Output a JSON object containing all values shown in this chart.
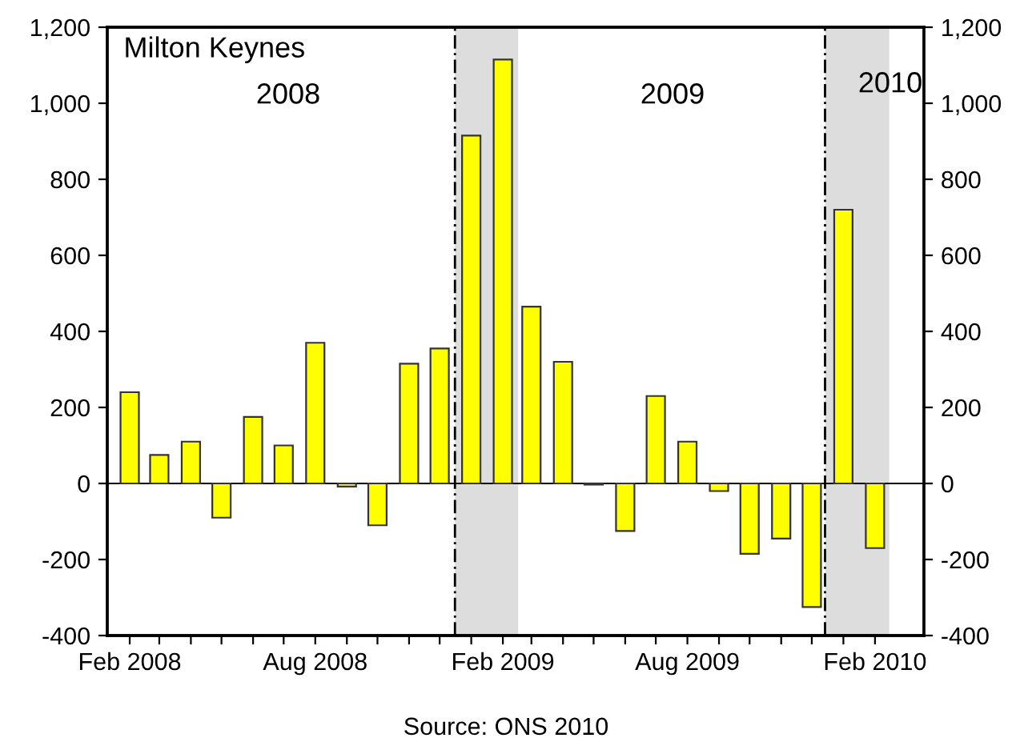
{
  "chart_data": {
    "type": "bar",
    "title": "Milton Keynes",
    "x": [
      "2008-02",
      "2008-03",
      "2008-04",
      "2008-05",
      "2008-06",
      "2008-07",
      "2008-08",
      "2008-09",
      "2008-10",
      "2008-11",
      "2008-12",
      "2009-01",
      "2009-02",
      "2009-03",
      "2009-04",
      "2009-05",
      "2009-06",
      "2009-07",
      "2009-08",
      "2009-09",
      "2009-10",
      "2009-11",
      "2009-12",
      "2010-01",
      "2010-02"
    ],
    "series": [
      {
        "color": "#ffff00",
        "values": [
          240,
          75,
          110,
          -90,
          175,
          100,
          370,
          -8,
          -110,
          315,
          355,
          915,
          1115,
          465,
          320,
          -3,
          -125,
          230,
          110,
          -20,
          -185,
          -145,
          -325,
          720,
          -170
        ]
      }
    ],
    "xlim": [
      "2008-01-10",
      "2010-03-21"
    ],
    "xticks": [
      {
        "value": "2008-02",
        "label": "Feb 2008"
      },
      {
        "value": "2008-03",
        "label": null
      },
      {
        "value": "2008-04",
        "label": null
      },
      {
        "value": "2008-05",
        "label": null
      },
      {
        "value": "2008-06",
        "label": null
      },
      {
        "value": "2008-07",
        "label": null
      },
      {
        "value": "2008-08",
        "label": "Aug 2008"
      },
      {
        "value": "2008-09",
        "label": null
      },
      {
        "value": "2008-10",
        "label": null
      },
      {
        "value": "2008-11",
        "label": null
      },
      {
        "value": "2008-12",
        "label": null
      },
      {
        "value": "2009-01",
        "label": null
      },
      {
        "value": "2009-02",
        "label": "Feb 2009"
      },
      {
        "value": "2009-03",
        "label": null
      },
      {
        "value": "2009-04",
        "label": null
      },
      {
        "value": "2009-05",
        "label": null
      },
      {
        "value": "2009-06",
        "label": null
      },
      {
        "value": "2009-07",
        "label": null
      },
      {
        "value": "2009-08",
        "label": "Aug 2009"
      },
      {
        "value": "2009-09",
        "label": null
      },
      {
        "value": "2009-10",
        "label": null
      },
      {
        "value": "2009-11",
        "label": null
      },
      {
        "value": "2009-12",
        "label": null
      },
      {
        "value": "2010-01",
        "label": null
      },
      {
        "value": "2010-02",
        "label": "Feb 2010"
      }
    ],
    "ylim": [
      -400,
      1200
    ],
    "yticks": [
      -400,
      -200,
      0,
      200,
      400,
      600,
      800,
      {
        "value": 1000,
        "label": "1,000"
      },
      {
        "value": 1200,
        "label": "1,200"
      }
    ],
    "y2lim": [
      -400,
      1200
    ],
    "y2ticks": [
      -400,
      -200,
      0,
      200,
      400,
      600,
      800,
      {
        "value": 1000,
        "label": "1,000"
      },
      {
        "value": 1200,
        "label": "1,200"
      }
    ],
    "bands": [
      {
        "axis": "x",
        "from": "2008-12-16",
        "to": "2009-02-16",
        "color": "#dddddd"
      },
      {
        "axis": "x",
        "from": "2009-12-14",
        "to": "2010-02-15",
        "color": "#dddddd"
      }
    ],
    "ref_lines": [
      {
        "axis": "x",
        "value": "2008-12-16",
        "color": "#000000",
        "line_style": "dashed"
      },
      {
        "axis": "x",
        "value": "2009-12-14",
        "color": "#000000",
        "line_style": "dashed"
      },
      {
        "axis": "y",
        "value": 0,
        "color": "#000000",
        "line_style": "solid"
      }
    ],
    "annotations": [
      "2008",
      "2009",
      "2010",
      "Source: ONS 2010"
    ],
    "legend": false
  }
}
